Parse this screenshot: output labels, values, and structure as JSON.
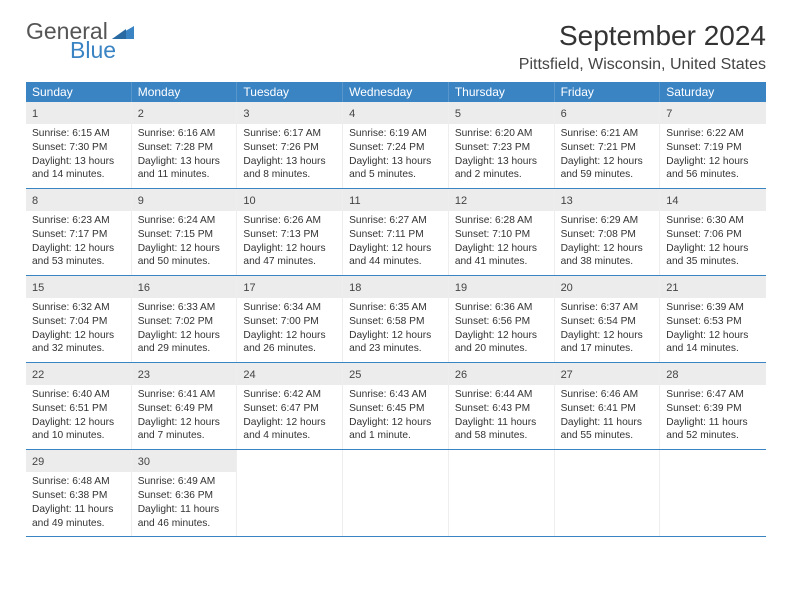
{
  "logo": {
    "general": "General",
    "blue": "Blue"
  },
  "title": "September 2024",
  "location": "Pittsfield, Wisconsin, United States",
  "weekdays": [
    "Sunday",
    "Monday",
    "Tuesday",
    "Wednesday",
    "Thursday",
    "Friday",
    "Saturday"
  ],
  "colors": {
    "header_bg": "#3b84c4",
    "daynum_bg": "#ececec",
    "week_border": "#3b84c4",
    "text": "#333333",
    "logo_blue": "#3b84c4"
  },
  "typography": {
    "title_fontsize": 28,
    "location_fontsize": 16,
    "weekday_fontsize": 12,
    "daynum_fontsize": 11,
    "dayinfo_fontsize": 10.2,
    "logo_fontsize": 23
  },
  "layout": {
    "columns": 7,
    "rows": 5
  },
  "days": [
    {
      "n": "1",
      "sunrise": "Sunrise: 6:15 AM",
      "sunset": "Sunset: 7:30 PM",
      "daylight": "Daylight: 13 hours and 14 minutes."
    },
    {
      "n": "2",
      "sunrise": "Sunrise: 6:16 AM",
      "sunset": "Sunset: 7:28 PM",
      "daylight": "Daylight: 13 hours and 11 minutes."
    },
    {
      "n": "3",
      "sunrise": "Sunrise: 6:17 AM",
      "sunset": "Sunset: 7:26 PM",
      "daylight": "Daylight: 13 hours and 8 minutes."
    },
    {
      "n": "4",
      "sunrise": "Sunrise: 6:19 AM",
      "sunset": "Sunset: 7:24 PM",
      "daylight": "Daylight: 13 hours and 5 minutes."
    },
    {
      "n": "5",
      "sunrise": "Sunrise: 6:20 AM",
      "sunset": "Sunset: 7:23 PM",
      "daylight": "Daylight: 13 hours and 2 minutes."
    },
    {
      "n": "6",
      "sunrise": "Sunrise: 6:21 AM",
      "sunset": "Sunset: 7:21 PM",
      "daylight": "Daylight: 12 hours and 59 minutes."
    },
    {
      "n": "7",
      "sunrise": "Sunrise: 6:22 AM",
      "sunset": "Sunset: 7:19 PM",
      "daylight": "Daylight: 12 hours and 56 minutes."
    },
    {
      "n": "8",
      "sunrise": "Sunrise: 6:23 AM",
      "sunset": "Sunset: 7:17 PM",
      "daylight": "Daylight: 12 hours and 53 minutes."
    },
    {
      "n": "9",
      "sunrise": "Sunrise: 6:24 AM",
      "sunset": "Sunset: 7:15 PM",
      "daylight": "Daylight: 12 hours and 50 minutes."
    },
    {
      "n": "10",
      "sunrise": "Sunrise: 6:26 AM",
      "sunset": "Sunset: 7:13 PM",
      "daylight": "Daylight: 12 hours and 47 minutes."
    },
    {
      "n": "11",
      "sunrise": "Sunrise: 6:27 AM",
      "sunset": "Sunset: 7:11 PM",
      "daylight": "Daylight: 12 hours and 44 minutes."
    },
    {
      "n": "12",
      "sunrise": "Sunrise: 6:28 AM",
      "sunset": "Sunset: 7:10 PM",
      "daylight": "Daylight: 12 hours and 41 minutes."
    },
    {
      "n": "13",
      "sunrise": "Sunrise: 6:29 AM",
      "sunset": "Sunset: 7:08 PM",
      "daylight": "Daylight: 12 hours and 38 minutes."
    },
    {
      "n": "14",
      "sunrise": "Sunrise: 6:30 AM",
      "sunset": "Sunset: 7:06 PM",
      "daylight": "Daylight: 12 hours and 35 minutes."
    },
    {
      "n": "15",
      "sunrise": "Sunrise: 6:32 AM",
      "sunset": "Sunset: 7:04 PM",
      "daylight": "Daylight: 12 hours and 32 minutes."
    },
    {
      "n": "16",
      "sunrise": "Sunrise: 6:33 AM",
      "sunset": "Sunset: 7:02 PM",
      "daylight": "Daylight: 12 hours and 29 minutes."
    },
    {
      "n": "17",
      "sunrise": "Sunrise: 6:34 AM",
      "sunset": "Sunset: 7:00 PM",
      "daylight": "Daylight: 12 hours and 26 minutes."
    },
    {
      "n": "18",
      "sunrise": "Sunrise: 6:35 AM",
      "sunset": "Sunset: 6:58 PM",
      "daylight": "Daylight: 12 hours and 23 minutes."
    },
    {
      "n": "19",
      "sunrise": "Sunrise: 6:36 AM",
      "sunset": "Sunset: 6:56 PM",
      "daylight": "Daylight: 12 hours and 20 minutes."
    },
    {
      "n": "20",
      "sunrise": "Sunrise: 6:37 AM",
      "sunset": "Sunset: 6:54 PM",
      "daylight": "Daylight: 12 hours and 17 minutes."
    },
    {
      "n": "21",
      "sunrise": "Sunrise: 6:39 AM",
      "sunset": "Sunset: 6:53 PM",
      "daylight": "Daylight: 12 hours and 14 minutes."
    },
    {
      "n": "22",
      "sunrise": "Sunrise: 6:40 AM",
      "sunset": "Sunset: 6:51 PM",
      "daylight": "Daylight: 12 hours and 10 minutes."
    },
    {
      "n": "23",
      "sunrise": "Sunrise: 6:41 AM",
      "sunset": "Sunset: 6:49 PM",
      "daylight": "Daylight: 12 hours and 7 minutes."
    },
    {
      "n": "24",
      "sunrise": "Sunrise: 6:42 AM",
      "sunset": "Sunset: 6:47 PM",
      "daylight": "Daylight: 12 hours and 4 minutes."
    },
    {
      "n": "25",
      "sunrise": "Sunrise: 6:43 AM",
      "sunset": "Sunset: 6:45 PM",
      "daylight": "Daylight: 12 hours and 1 minute."
    },
    {
      "n": "26",
      "sunrise": "Sunrise: 6:44 AM",
      "sunset": "Sunset: 6:43 PM",
      "daylight": "Daylight: 11 hours and 58 minutes."
    },
    {
      "n": "27",
      "sunrise": "Sunrise: 6:46 AM",
      "sunset": "Sunset: 6:41 PM",
      "daylight": "Daylight: 11 hours and 55 minutes."
    },
    {
      "n": "28",
      "sunrise": "Sunrise: 6:47 AM",
      "sunset": "Sunset: 6:39 PM",
      "daylight": "Daylight: 11 hours and 52 minutes."
    },
    {
      "n": "29",
      "sunrise": "Sunrise: 6:48 AM",
      "sunset": "Sunset: 6:38 PM",
      "daylight": "Daylight: 11 hours and 49 minutes."
    },
    {
      "n": "30",
      "sunrise": "Sunrise: 6:49 AM",
      "sunset": "Sunset: 6:36 PM",
      "daylight": "Daylight: 11 hours and 46 minutes."
    }
  ]
}
